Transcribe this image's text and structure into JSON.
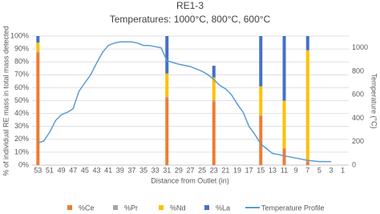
{
  "chart_data": {
    "type": "bar",
    "title": "RE1-3",
    "subtitle": "Temperatures: 1000°C, 800°C, 600°C",
    "x_label": "Distance from Outlet (in)",
    "y_label": "% of individual RE mass in total mass detected",
    "y2_label": "Temperature (°C)",
    "x": [
      53,
      31,
      23,
      15,
      11,
      7
    ],
    "series": [
      {
        "name": "%Ce",
        "color": "#ed7d31",
        "values": [
          87,
          52,
          49,
          38,
          13,
          3
        ]
      },
      {
        "name": "%Pr",
        "color": "#a5a5a5",
        "values": [
          1,
          1,
          1,
          1,
          0,
          0
        ]
      },
      {
        "name": "%Nd",
        "color": "#ffc000",
        "values": [
          7,
          18,
          18,
          22,
          37,
          86
        ]
      },
      {
        "name": "%La",
        "color": "#4472c4",
        "values": [
          5,
          29,
          9,
          39,
          50,
          11
        ]
      },
      {
        "name": "Temperature Profile",
        "type": "line",
        "axis": "y2",
        "color": "#5b9bd5",
        "x": [
          53,
          52,
          51,
          50,
          49,
          48,
          47,
          46,
          45,
          44,
          43,
          42,
          41,
          40,
          39,
          38,
          37,
          36,
          35,
          34,
          33,
          32,
          31,
          29,
          27,
          25,
          24,
          23,
          22,
          21,
          20,
          19,
          18,
          17,
          16,
          15,
          14,
          13,
          12,
          11,
          10,
          9,
          8,
          7,
          6,
          5,
          4,
          3
        ],
        "values": [
          190,
          205,
          280,
          380,
          430,
          450,
          480,
          630,
          700,
          770,
          870,
          960,
          1020,
          1040,
          1050,
          1050,
          1050,
          1040,
          1020,
          1020,
          1010,
          1000,
          890,
          860,
          840,
          800,
          770,
          730,
          680,
          650,
          600,
          520,
          450,
          330,
          260,
          180,
          140,
          100,
          90,
          80,
          70,
          60,
          50,
          40,
          35,
          30,
          30,
          30
        ]
      }
    ],
    "xlim": [
      54,
      0
    ],
    "xticks": [
      53,
      51,
      49,
      47,
      45,
      43,
      41,
      39,
      37,
      35,
      33,
      31,
      29,
      27,
      25,
      23,
      21,
      19,
      17,
      15,
      13,
      11,
      9,
      7,
      5,
      3,
      1
    ],
    "ylim": [
      0,
      100
    ],
    "yticks": [
      {
        "value": 0,
        "label": "0%"
      },
      {
        "value": 10,
        "label": "10%"
      },
      {
        "value": 20,
        "label": "20%"
      },
      {
        "value": 30,
        "label": "30%"
      },
      {
        "value": 40,
        "label": "40%"
      },
      {
        "value": 50,
        "label": "50%"
      },
      {
        "value": 60,
        "label": "60%"
      },
      {
        "value": 70,
        "label": "70%"
      },
      {
        "value": 80,
        "label": "80%"
      },
      {
        "value": 90,
        "label": "90%"
      },
      {
        "value": 100,
        "label": "100%"
      }
    ],
    "y2lim": [
      0,
      1100
    ],
    "y2ticks": [
      0,
      200,
      400,
      600,
      800,
      1000
    ],
    "grid": true,
    "legend": "bottom"
  }
}
